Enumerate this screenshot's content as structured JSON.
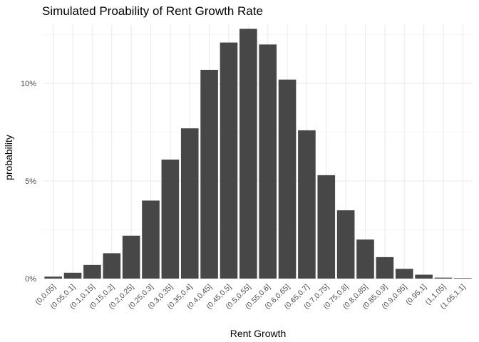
{
  "chart_data": {
    "type": "bar",
    "title": "Simulated Proability of Rent Growth Rate",
    "xlabel": "Rent Growth",
    "ylabel": "probability",
    "categories": [
      "(0,0.05]",
      "(0.05,0.1]",
      "(0.1,0.15]",
      "(0.15,0.2]",
      "(0.2,0.25]",
      "(0.25,0.3]",
      "(0.3,0.35]",
      "(0.35,0.4]",
      "(0.4,0.45]",
      "(0.45,0.5]",
      "(0.5,0.55]",
      "(0.55,0.6]",
      "(0.6,0.65]",
      "(0.65,0.7]",
      "(0.7,0.75]",
      "(0.75,0.8]",
      "(0.8,0.85]",
      "(0.85,0.9]",
      "(0.9,0.95]",
      "(0.95,1]",
      "(1,1.05]",
      "(1.05,1.1]"
    ],
    "values": [
      0.001,
      0.003,
      0.007,
      0.013,
      0.022,
      0.04,
      0.061,
      0.077,
      0.107,
      0.121,
      0.128,
      0.12,
      0.102,
      0.076,
      0.053,
      0.035,
      0.02,
      0.011,
      0.005,
      0.002,
      0.0005,
      0.0003
    ],
    "ylim": [
      0,
      0.13
    ],
    "yticks": [
      0,
      0.05,
      0.1
    ],
    "ytick_labels": [
      "0%",
      "5%",
      "10%"
    ],
    "bar_color": "#474747",
    "grid": true,
    "legend": "none"
  }
}
